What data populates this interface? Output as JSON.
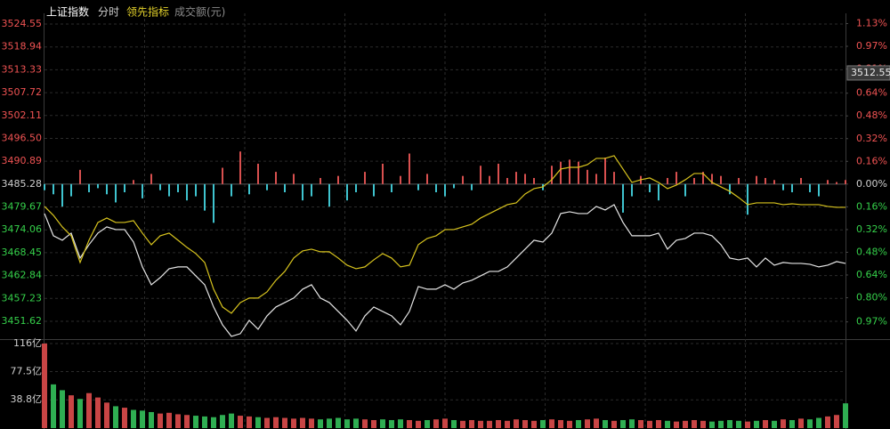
{
  "chart_data": {
    "type": "line",
    "title": "上证指数",
    "tabs": [
      "分时",
      "领先指标",
      "成交额(元)"
    ],
    "ylim": [
      3447.47,
      3527.17
    ],
    "yticks": [
      3524.55,
      3518.94,
      3513.33,
      3507.72,
      3502.11,
      {
        "value": 3496.5,
        "label": "3496.50"
      },
      3490.89,
      3485.28,
      3479.67,
      3474.06,
      3468.45,
      3462.84,
      3457.23,
      3451.62
    ],
    "y2lim": [
      -1.085,
      1.202
    ],
    "y2ticks": [
      {
        "value": 1.13,
        "label": "1.13%"
      },
      {
        "value": 0.97,
        "label": "0.97%"
      },
      {
        "value": 0.81,
        "label": "0.81%"
      },
      {
        "value": 0.64,
        "label": "0.64%"
      },
      {
        "value": 0.48,
        "label": "0.48%"
      },
      {
        "value": 0.32,
        "label": "0.32%"
      },
      {
        "value": 0.16,
        "label": "0.16%"
      },
      {
        "value": 0,
        "label": "0.00%"
      },
      {
        "value": -0.16,
        "label": "0.16%"
      },
      {
        "value": -0.32,
        "label": "0.32%"
      },
      {
        "value": -0.48,
        "label": "0.48%"
      },
      {
        "value": -0.64,
        "label": "0.64%"
      },
      {
        "value": -0.8,
        "label": "0.80%"
      },
      {
        "value": -0.97,
        "label": "0.97%"
      }
    ],
    "price_marker": 3512.55,
    "grid": true,
    "series": [
      {
        "color": "#e6e6e6",
        "values": [
          3478.05,
          3472.6,
          3471.51,
          3473.25,
          3467.14,
          3470.41,
          3473.25,
          3474.78,
          3474.12,
          3474.12,
          3471.07,
          3464.96,
          3460.59,
          3462.34,
          3464.52,
          3464.96,
          3464.96,
          3462.77,
          3460.59,
          3455.13,
          3450.76,
          3447.93,
          3448.58,
          3451.86,
          3449.67,
          3452.95,
          3455.13,
          3456.22,
          3457.32,
          3459.5,
          3460.59,
          3457.32,
          3456.22,
          3454.04,
          3451.86,
          3449.24,
          3452.95,
          3455.13,
          3454.04,
          3452.95,
          3450.76,
          3454.04,
          3460.15,
          3459.5,
          3459.5,
          3460.59,
          3459.5,
          3461.03,
          3461.68,
          3462.77,
          3463.86,
          3463.86,
          3464.96,
          3467.14,
          3469.32,
          3471.51,
          3471.07,
          3473.25,
          3478.05,
          3478.49,
          3478.05,
          3478.05,
          3479.8,
          3478.93,
          3480.24,
          3475.87,
          3472.6,
          3472.6,
          3472.6,
          3473.25,
          3469.32,
          3471.51,
          3471.94,
          3473.25,
          3473.25,
          3472.6,
          3470.41,
          3467.14,
          3466.7,
          3467.14,
          3464.96,
          3467.14,
          3465.39,
          3466.05,
          3465.83,
          3465.83,
          3465.61,
          3464.96,
          3465.39,
          3466.27,
          3465.83
        ]
      },
      {
        "color": "#d8c41e",
        "values": [
          3479.8,
          3477.62,
          3474.78,
          3472.6,
          3466.05,
          3471.51,
          3475.87,
          3476.96,
          3475.87,
          3475.87,
          3476.31,
          3473.25,
          3470.41,
          3472.6,
          3473.25,
          3471.51,
          3469.76,
          3468.23,
          3466.05,
          3459.5,
          3455.13,
          3453.6,
          3456.22,
          3457.32,
          3457.32,
          3458.84,
          3461.68,
          3463.86,
          3467.14,
          3468.89,
          3469.32,
          3468.67,
          3468.67,
          3467.14,
          3465.39,
          3464.52,
          3464.96,
          3466.7,
          3468.23,
          3467.14,
          3464.96,
          3465.39,
          3470.41,
          3471.94,
          3472.6,
          3474.12,
          3474.12,
          3474.78,
          3475.43,
          3476.96,
          3478.05,
          3479.14,
          3480.24,
          3480.67,
          3482.86,
          3484.17,
          3484.6,
          3486.35,
          3488.97,
          3489.4,
          3489.4,
          3490.06,
          3491.59,
          3491.59,
          3492.24,
          3488.97,
          3485.69,
          3486.35,
          3486.79,
          3485.69,
          3484.17,
          3485.04,
          3486.35,
          3487.88,
          3487.88,
          3485.69,
          3484.6,
          3483.51,
          3481.98,
          3480.24,
          3480.67,
          3480.67,
          3480.67,
          3480.24,
          3480.45,
          3480.24,
          3480.24,
          3480.24,
          3479.8,
          3479.58,
          3479.58
        ]
      }
    ],
    "diff_bars": {
      "base": 3485.28,
      "up_color": "#d9504f",
      "down_color": "#3fc4cf",
      "values": [
        -1.5,
        -2.5,
        -5.5,
        -3.0,
        3.5,
        -2.0,
        -1.0,
        -2.5,
        -4.5,
        -2.0,
        1.0,
        -3.5,
        2.5,
        -1.5,
        -3.0,
        -2.0,
        -4.0,
        -3.0,
        -6.5,
        -9.5,
        4.0,
        -3.0,
        8.0,
        -2.5,
        5.0,
        -1.5,
        3.0,
        -2.0,
        2.5,
        -4.0,
        -3.0,
        1.5,
        -5.5,
        2.0,
        -4.0,
        -2.0,
        3.0,
        -3.0,
        5.0,
        -2.0,
        2.0,
        7.5,
        -1.5,
        2.5,
        -2.0,
        -3.0,
        -1.0,
        2.0,
        -1.5,
        4.5,
        2.0,
        5.0,
        1.5,
        3.0,
        2.5,
        1.5,
        -1.5,
        4.5,
        5.5,
        6.0,
        5.5,
        3.5,
        2.5,
        6.5,
        3.0,
        -7.0,
        -3.0,
        2.0,
        -2.0,
        -4.0,
        1.5,
        3.0,
        -3.0,
        1.5,
        3.0,
        2.5,
        2.0,
        -2.5,
        1.5,
        -7.5,
        2.0,
        1.5,
        1.0,
        -1.5,
        -2.0,
        1.5,
        -2.0,
        -3.0,
        1.0,
        0.5,
        1.0
      ]
    },
    "volume": {
      "ylim": [
        0,
        116
      ],
      "up_color": "#c94545",
      "down_color": "#2fae52",
      "yticks": [
        {
          "value": 116,
          "label": "116亿"
        },
        {
          "value": 77.5,
          "label": "77.5亿"
        },
        {
          "value": 38.8,
          "label": "38.8亿"
        }
      ],
      "values": [
        116,
        60,
        52,
        45,
        40,
        48,
        42,
        35,
        30,
        28,
        25,
        24,
        22,
        20,
        21,
        19,
        18,
        17,
        16,
        15,
        18,
        20,
        17,
        16,
        15,
        14,
        15,
        14,
        13,
        14,
        13,
        12,
        13,
        14,
        12,
        13,
        12,
        11,
        12,
        11,
        12,
        11,
        10,
        11,
        12,
        13,
        11,
        10,
        11,
        10,
        10,
        11,
        10,
        12,
        11,
        10,
        11,
        12,
        11,
        10,
        11,
        12,
        13,
        11,
        10,
        11,
        12,
        11,
        10,
        11,
        10,
        9,
        10,
        11,
        10,
        9,
        10,
        11,
        10,
        9,
        10,
        11,
        10,
        12,
        11,
        13,
        12,
        14,
        16,
        18,
        34
      ]
    }
  }
}
